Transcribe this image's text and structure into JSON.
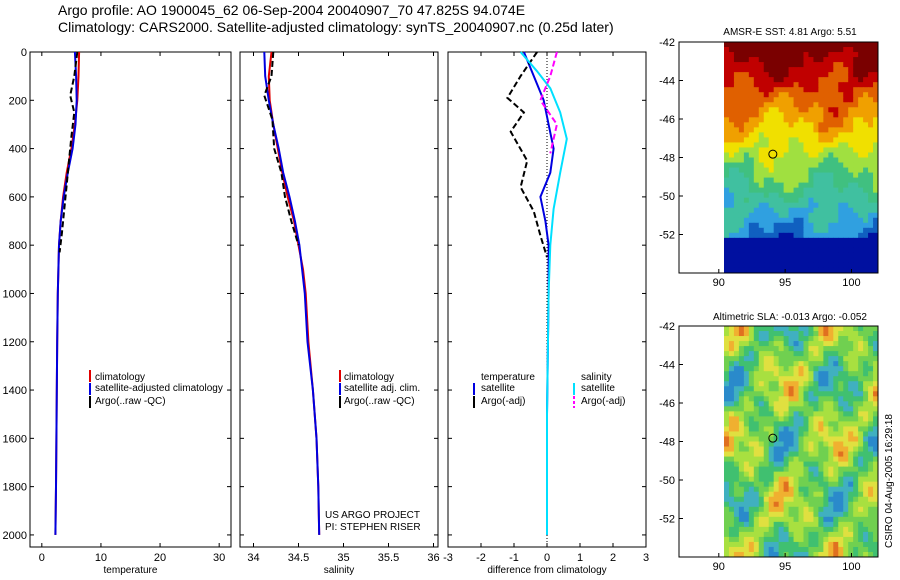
{
  "header": {
    "line1": "Argo profile: AO 1900045_62 06-Sep-2004 20040907_70 47.825S 94.074E",
    "line2": "Climatology: CARS2000. Satellite-adjusted climatology: synTS_20040907.nc (0.25d later)"
  },
  "colors": {
    "climatology": "#e00000",
    "satellite": "#0000e0",
    "argo": "#000000",
    "salinity_diff": "#00e0ff",
    "salinity_argo": "#ff00ff"
  },
  "chart_data": [
    {
      "type": "line",
      "id": "temperature",
      "xlabel": "temperature",
      "ylabel": "",
      "xlim": [
        -2,
        32
      ],
      "ylim": [
        2050,
        0
      ],
      "xticks": [
        0,
        10,
        20,
        30
      ],
      "yticks": [
        0,
        200,
        400,
        600,
        800,
        1000,
        1200,
        1400,
        1600,
        1800,
        2000
      ],
      "legend": [
        "climatology",
        "satellite-adjusted climatology",
        "Argo(..raw -QC)"
      ],
      "series": [
        {
          "name": "climatology",
          "color": "#e00000",
          "x": [
            6.3,
            6.2,
            6.0,
            5.6,
            5.0,
            4.2,
            3.6,
            3.2,
            2.9,
            2.7,
            2.6,
            2.5,
            2.4,
            2.3
          ],
          "y": [
            0,
            100,
            200,
            300,
            400,
            500,
            600,
            700,
            800,
            1000,
            1200,
            1500,
            1800,
            2000
          ]
        },
        {
          "name": "satellite-adjusted climatology",
          "color": "#0000e0",
          "x": [
            5.6,
            5.8,
            5.9,
            5.7,
            5.2,
            4.4,
            3.7,
            3.2,
            2.9,
            2.7,
            2.6,
            2.5,
            2.4,
            2.3
          ],
          "y": [
            0,
            100,
            200,
            300,
            400,
            500,
            600,
            700,
            800,
            1000,
            1200,
            1500,
            1800,
            2000
          ]
        },
        {
          "name": "Argo(..raw -QC)",
          "color": "#000000",
          "x": [
            6.0,
            5.5,
            4.8,
            5.5,
            5.0,
            4.6,
            4.2,
            3.8,
            3.4,
            3.0
          ],
          "y": [
            0,
            100,
            180,
            250,
            350,
            450,
            550,
            650,
            750,
            830
          ]
        }
      ]
    },
    {
      "type": "line",
      "id": "salinity",
      "xlabel": "salinity",
      "ylabel": "",
      "xlim": [
        33.85,
        36.05
      ],
      "ylim": [
        2050,
        0
      ],
      "xticks": [
        34,
        34.5,
        35,
        35.5,
        36
      ],
      "yticks": [
        0,
        200,
        400,
        600,
        800,
        1000,
        1200,
        1400,
        1600,
        1800,
        2000
      ],
      "legend": [
        "climatology",
        "satellite adj. clim.",
        "Argo(..raw -QC)"
      ],
      "annotations": [
        "US ARGO PROJECT",
        "PI: STEPHEN RISER"
      ],
      "series": [
        {
          "name": "climatology",
          "color": "#e00000",
          "x": [
            34.2,
            34.17,
            34.18,
            34.22,
            34.27,
            34.32,
            34.38,
            34.45,
            34.5,
            34.55,
            34.58,
            34.61,
            34.66,
            34.7,
            34.72,
            34.73
          ],
          "y": [
            0,
            100,
            200,
            300,
            400,
            500,
            600,
            700,
            800,
            900,
            1000,
            1200,
            1400,
            1600,
            1800,
            2000
          ]
        },
        {
          "name": "satellite adj. clim.",
          "color": "#0000e0",
          "x": [
            34.12,
            34.13,
            34.17,
            34.22,
            34.28,
            34.33,
            34.4,
            34.46,
            34.51,
            34.54,
            34.57,
            34.6,
            34.66,
            34.7,
            34.72,
            34.73
          ],
          "y": [
            0,
            100,
            200,
            300,
            400,
            500,
            600,
            700,
            800,
            900,
            1000,
            1200,
            1400,
            1600,
            1800,
            2000
          ]
        },
        {
          "name": "Argo(..raw -QC)",
          "color": "#000000",
          "x": [
            34.22,
            34.2,
            34.12,
            34.21,
            34.23,
            34.31,
            34.35,
            34.42,
            34.5
          ],
          "y": [
            0,
            100,
            180,
            280,
            400,
            500,
            600,
            700,
            800
          ]
        }
      ]
    },
    {
      "type": "line",
      "id": "difference",
      "xlabel": "difference from climatology",
      "ylabel": "",
      "xlim": [
        -3,
        3
      ],
      "ylim": [
        2050,
        0
      ],
      "xticks": [
        -3,
        -2,
        -1,
        0,
        1,
        2,
        3
      ],
      "yticks": [
        0,
        200,
        400,
        600,
        800,
        1000,
        1200,
        1400,
        1600,
        1800,
        2000
      ],
      "legend": [
        "temperature",
        "satellite",
        "Argo(-adj)",
        "salinity",
        "satellite",
        "Argo(-adj)"
      ],
      "series": [
        {
          "name": "temperature satellite",
          "color": "#0000e0",
          "x": [
            -0.7,
            -0.4,
            -0.1,
            0.05,
            0.2,
            0.1,
            -0.2,
            -0.05,
            0.05,
            0.05,
            0,
            0
          ],
          "y": [
            0,
            100,
            200,
            300,
            400,
            500,
            600,
            700,
            800,
            1000,
            1500,
            2000
          ]
        },
        {
          "name": "temperature Argo(-adj)",
          "color": "#000000",
          "x": [
            -0.3,
            -0.8,
            -1.2,
            -0.7,
            -1.1,
            -0.6,
            -0.8,
            -0.4,
            -0.2,
            0
          ],
          "y": [
            0,
            100,
            190,
            250,
            330,
            450,
            560,
            660,
            760,
            850
          ]
        },
        {
          "name": "salinity satellite",
          "color": "#00e0ff",
          "x": [
            -0.8,
            -0.3,
            0.1,
            0.4,
            0.6,
            0.4,
            0.2,
            0.1,
            0.05,
            0,
            0
          ],
          "y": [
            0,
            80,
            150,
            250,
            360,
            500,
            650,
            800,
            1000,
            1500,
            2000
          ]
        },
        {
          "name": "salinity Argo(-adj)",
          "color": "#ff00ff",
          "x": [
            0.3,
            0.1,
            -0.2,
            0.3,
            0.1
          ],
          "y": [
            0,
            100,
            200,
            300,
            420
          ]
        }
      ]
    },
    {
      "type": "heatmap",
      "id": "sst-map",
      "title": "AMSR-E SST: 4.81 Argo: 5.51",
      "xticks": [
        90,
        95,
        100
      ],
      "yticks": [
        -42,
        -44,
        -46,
        -48,
        -50,
        -52
      ],
      "xlim": [
        87,
        102
      ],
      "ylim": [
        -54,
        -42
      ],
      "marker": {
        "lon": 94.074,
        "lat": -47.825
      }
    },
    {
      "type": "heatmap",
      "id": "sla-map",
      "title": "Altimetric SLA: -0.013 Argo: -0.052",
      "xticks": [
        90,
        95,
        100
      ],
      "yticks": [
        -42,
        -44,
        -46,
        -48,
        -50,
        -52
      ],
      "xlim": [
        87,
        102
      ],
      "ylim": [
        -54,
        -42
      ],
      "marker": {
        "lon": 94.074,
        "lat": -47.825
      }
    }
  ],
  "footer": {
    "stamp": "CSIRO 04-Aug-2005 16:29:18"
  }
}
